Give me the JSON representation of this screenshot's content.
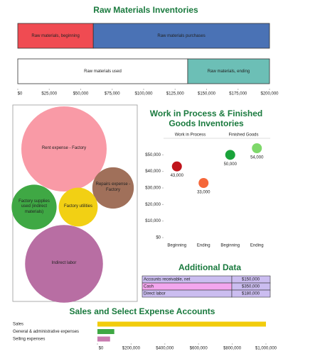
{
  "chart_data": [
    {
      "type": "stacked-bar",
      "title": "Raw Materials Inventories",
      "bars": [
        [
          {
            "name": "Raw materials, beginning",
            "color": "#f04b52",
            "value": 60000
          },
          {
            "name": "Raw materials purchases",
            "color": "#4a72b5",
            "value": 140000
          }
        ],
        [
          {
            "name": "Raw materials used",
            "color": "#ffffff",
            "value": 135000
          },
          {
            "name": "Raw materials, ending",
            "color": "#6cbfb6",
            "value": 65000
          }
        ]
      ],
      "xlim": [
        0,
        200000
      ],
      "xticks": [
        {
          "value": 0,
          "label": "$0"
        },
        {
          "value": 25000,
          "label": "$25,000"
        },
        {
          "value": 50000,
          "label": "$50,000"
        },
        {
          "value": 75000,
          "label": "$75,000"
        },
        {
          "value": 100000,
          "label": "$100,000"
        },
        {
          "value": 125000,
          "label": "$125,000"
        },
        {
          "value": 150000,
          "label": "$150,000"
        },
        {
          "value": 175000,
          "label": "$175,000"
        },
        {
          "value": 200000,
          "label": "$200,000"
        }
      ]
    },
    {
      "type": "bubble",
      "items": [
        {
          "name": "Rent expense - Factory",
          "color": "#f99aa6",
          "value": 36000
        },
        {
          "name": "Repairs expense - Factory",
          "color": "#a0705a",
          "value": 8500
        },
        {
          "name": "Factory supplies used (indirect materials)",
          "color": "#3fa844",
          "value": 10000
        },
        {
          "name": "Factory utilities",
          "color": "#f2d014",
          "value": 7500
        },
        {
          "name": "Indirect labor",
          "color": "#b86ea3",
          "value": 30000
        }
      ]
    },
    {
      "type": "dot",
      "title": "Work in Process & Finished Goods Inventories",
      "groups": [
        {
          "name": "Work in Process",
          "categories": [
            "Beginning",
            "Ending"
          ],
          "values": [
            43000,
            33000
          ],
          "value_labels": [
            "43,000",
            "33,000"
          ],
          "colors": [
            "#c0141b",
            "#f5673a"
          ]
        },
        {
          "name": "Finished Goods",
          "categories": [
            "Beginning",
            "Ending"
          ],
          "values": [
            50000,
            54000
          ],
          "value_labels": [
            "50,000",
            "54,000"
          ],
          "colors": [
            "#1aa33a",
            "#7ed86a"
          ]
        }
      ],
      "ylim": [
        0,
        60000
      ],
      "yticks": [
        {
          "value": 0,
          "label": "$0"
        },
        {
          "value": 10000,
          "label": "$10,000"
        },
        {
          "value": 20000,
          "label": "$20,000"
        },
        {
          "value": 30000,
          "label": "$30,000"
        },
        {
          "value": 40000,
          "label": "$40,000"
        },
        {
          "value": 50000,
          "label": "$50,000"
        }
      ]
    },
    {
      "type": "table",
      "title": "Additional Data",
      "rows": [
        [
          "Accounts receivable, net",
          "$150,000"
        ],
        [
          "Cash",
          "$350,000"
        ],
        [
          "Direct labor",
          "$180,000"
        ]
      ]
    },
    {
      "type": "hbar",
      "title": "Sales and Select Expense Accounts",
      "categories": [
        "Sales",
        "General & administrative expenses",
        "Selling expenses"
      ],
      "values": [
        1000000,
        100000,
        75000
      ],
      "colors": [
        "#f2cc0c",
        "#3fa844",
        "#c87bb0"
      ],
      "xlim": [
        0,
        1000000
      ],
      "xticks": [
        {
          "value": 0,
          "label": "$0"
        },
        {
          "value": 200000,
          "label": "$200,000"
        },
        {
          "value": 400000,
          "label": "$400,000"
        },
        {
          "value": 600000,
          "label": "$600,000"
        },
        {
          "value": 800000,
          "label": "$800,000"
        },
        {
          "value": 1000000,
          "label": "$1,000,000"
        }
      ]
    }
  ]
}
